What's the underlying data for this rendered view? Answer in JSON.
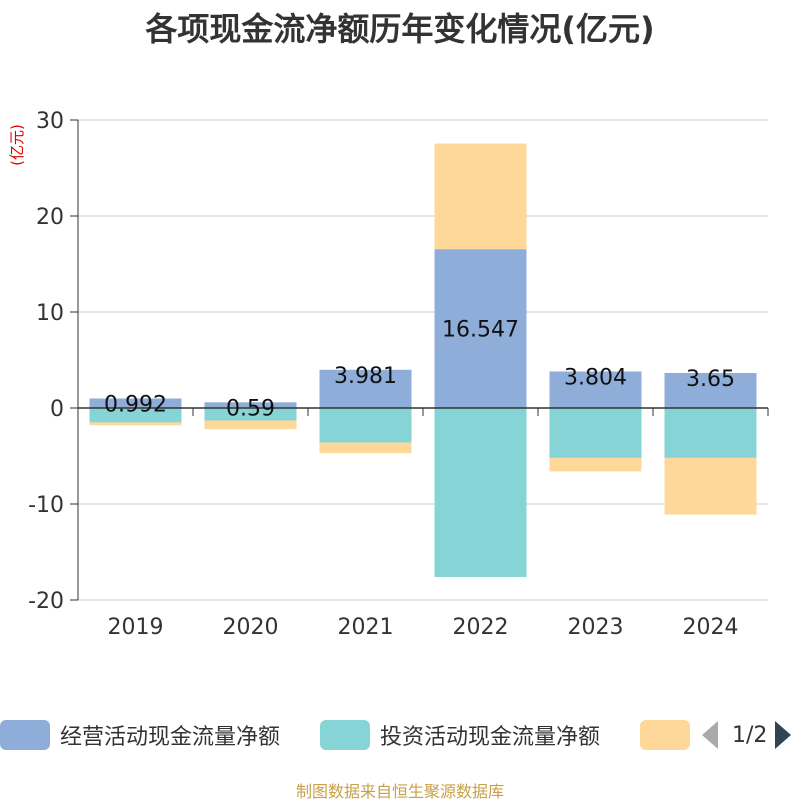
{
  "chart_data": {
    "type": "bar",
    "stacked": true,
    "title": "各项现金流净额历年变化情况(亿元)",
    "ylabel": "(亿元)",
    "xlabel": "",
    "categories": [
      "2019",
      "2020",
      "2021",
      "2022",
      "2023",
      "2024"
    ],
    "ylim": [
      -20,
      30
    ],
    "yticks": [
      -20,
      -10,
      0,
      10,
      20,
      30
    ],
    "grid": true,
    "series": [
      {
        "name": "经营活动现金流量净额",
        "color": "#8eadd9",
        "values": [
          0.992,
          0.59,
          3.981,
          16.547,
          3.804,
          3.65
        ],
        "labels": [
          "0.992",
          "0.59",
          "3.981",
          "16.547",
          "3.804",
          "3.65"
        ]
      },
      {
        "name": "投资活动现金流量净额",
        "color": "#86d4d6",
        "values": [
          -1.5,
          -1.3,
          -3.6,
          -17.6,
          -5.2,
          -5.2
        ]
      },
      {
        "name": "",
        "color": "#fed899",
        "values": [
          -0.3,
          -0.9,
          -1.1,
          11.0,
          -1.4,
          -5.9
        ]
      }
    ],
    "legend_position": "bottom"
  },
  "legend": {
    "page": "1/2"
  },
  "source": "制图数据来自恒生聚源数据库"
}
